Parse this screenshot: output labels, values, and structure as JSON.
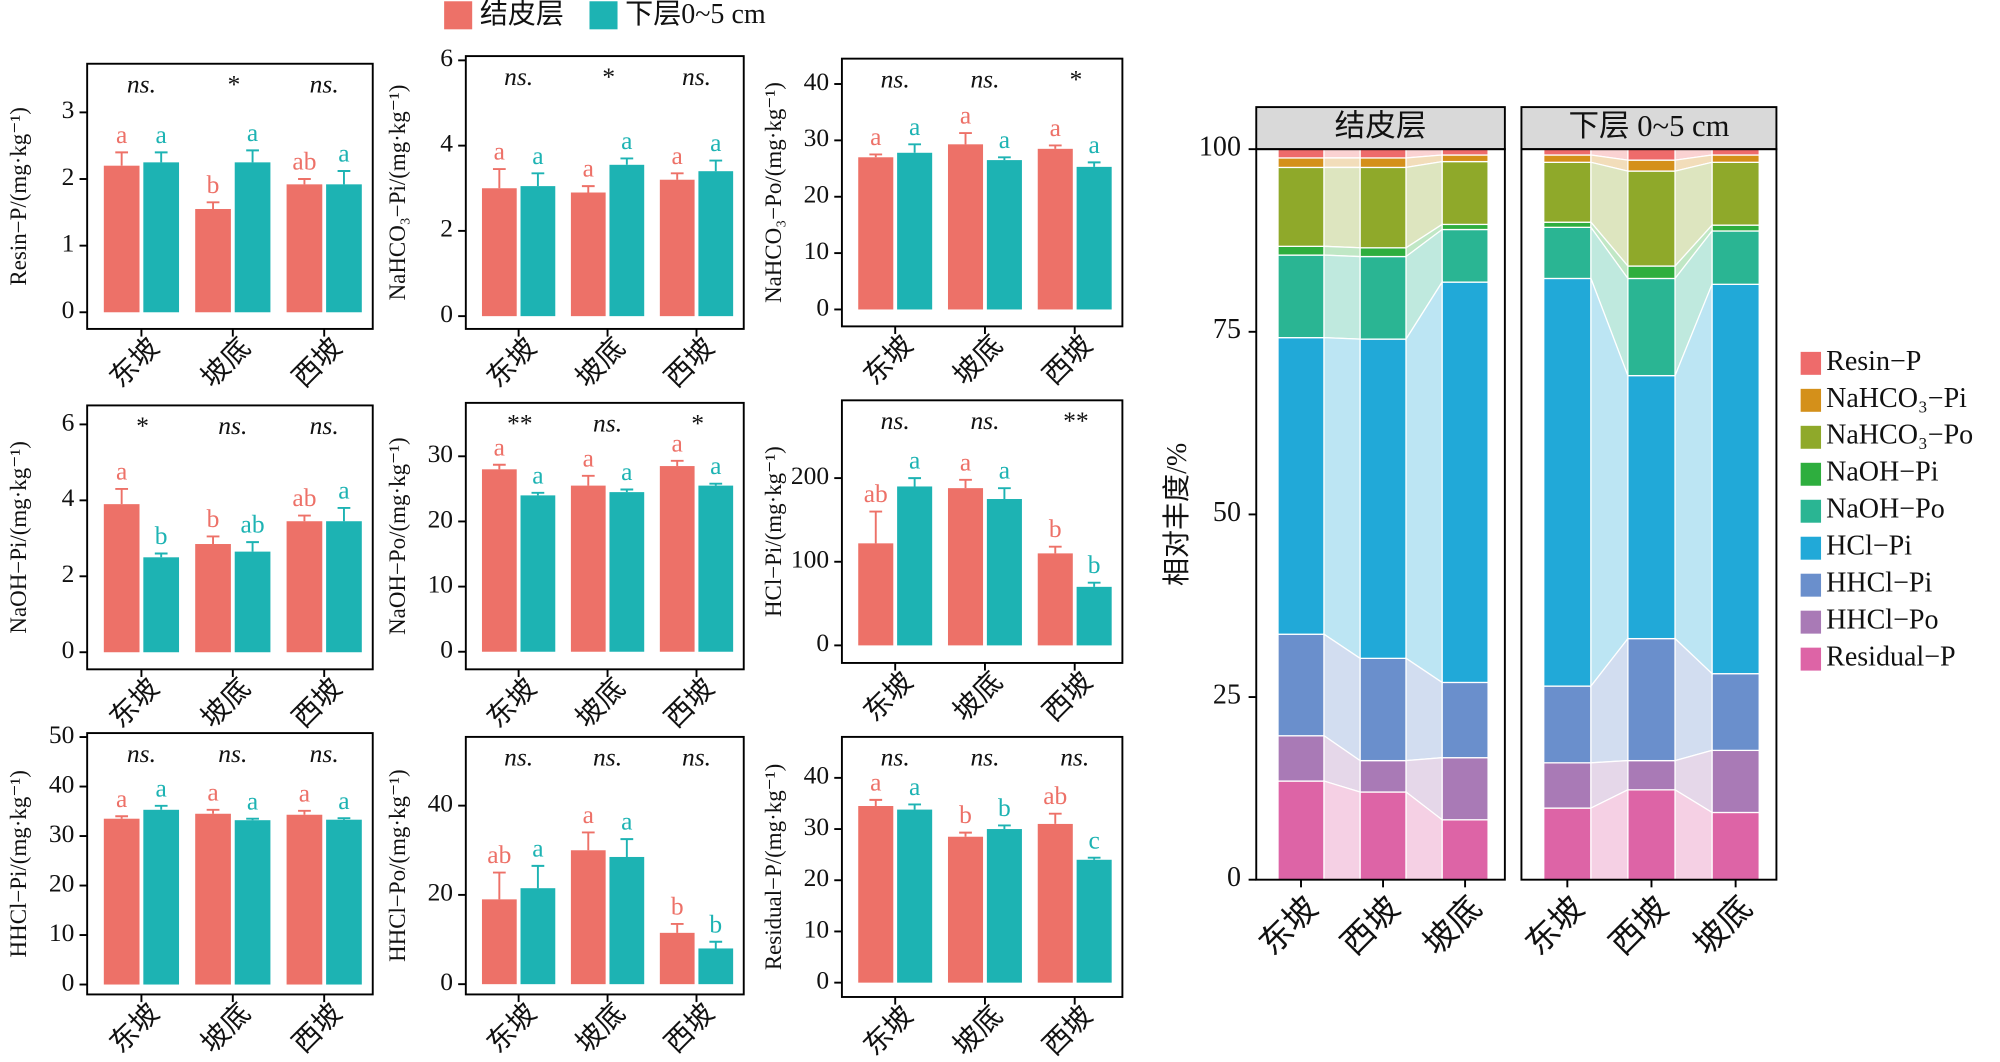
{
  "chart_data": [
    {
      "type": "bar",
      "ylabel": "Resin−P/(mg·kg⁻¹)",
      "categories": [
        "东坡",
        "坡底",
        "西坡"
      ],
      "ylim": [
        -0.25,
        3.73
      ],
      "yticks": [
        0,
        1,
        2,
        3
      ],
      "significance": [
        "ns.",
        "*",
        "ns."
      ],
      "series": [
        {
          "name": "结皮层",
          "color": "#ed7168",
          "values": [
            2.2,
            1.55,
            1.92
          ],
          "errors": [
            0.2,
            0.1,
            0.08
          ],
          "letters": [
            "a",
            "b",
            "ab"
          ]
        },
        {
          "name": "下层0~5 cm",
          "color": "#1db3b3",
          "values": [
            2.25,
            2.25,
            1.92
          ],
          "errors": [
            0.15,
            0.18,
            0.2
          ],
          "letters": [
            "a",
            "a",
            "a"
          ]
        }
      ]
    },
    {
      "type": "bar",
      "ylabel": "NaHCO₃−Pi/(mg·kg⁻¹)",
      "categories": [
        "东坡",
        "坡底",
        "西坡"
      ],
      "ylim": [
        -0.3,
        6.1
      ],
      "yticks": [
        0,
        2,
        4,
        6
      ],
      "significance": [
        "ns.",
        "*",
        "ns."
      ],
      "series": [
        {
          "color": "#ed7168",
          "values": [
            3.0,
            2.9,
            3.2
          ],
          "errors": [
            0.45,
            0.15,
            0.15
          ],
          "letters": [
            "a",
            "a",
            "a"
          ]
        },
        {
          "color": "#1db3b3",
          "values": [
            3.05,
            3.55,
            3.4
          ],
          "errors": [
            0.3,
            0.15,
            0.25
          ],
          "letters": [
            "a",
            "a",
            "a"
          ]
        }
      ]
    },
    {
      "type": "bar",
      "ylabel": "NaHCO₃−Po/(mg·kg⁻¹)",
      "categories": [
        "东坡",
        "坡底",
        "西坡"
      ],
      "ylim": [
        -3,
        44.5
      ],
      "yticks": [
        0,
        10,
        20,
        30,
        40
      ],
      "significance": [
        "ns.",
        "ns.",
        "*"
      ],
      "series": [
        {
          "color": "#ed7168",
          "values": [
            27,
            29.3,
            28.5
          ],
          "errors": [
            0.5,
            2,
            0.6
          ],
          "letters": [
            "a",
            "a",
            "a"
          ]
        },
        {
          "color": "#1db3b3",
          "values": [
            27.8,
            26.5,
            25.3
          ],
          "errors": [
            1.5,
            0.5,
            0.8
          ],
          "letters": [
            "a",
            "a",
            "a"
          ]
        }
      ]
    },
    {
      "type": "bar",
      "ylabel": "NaOH−Pi/(mg·kg⁻¹)",
      "categories": [
        "东坡",
        "坡底",
        "西坡"
      ],
      "ylim": [
        -0.45,
        6.5
      ],
      "yticks": [
        0,
        2,
        4,
        6
      ],
      "significance": [
        "*",
        "ns.",
        "ns."
      ],
      "series": [
        {
          "color": "#ed7168",
          "values": [
            3.9,
            2.85,
            3.45
          ],
          "errors": [
            0.4,
            0.2,
            0.15
          ],
          "letters": [
            "a",
            "b",
            "ab"
          ]
        },
        {
          "color": "#1db3b3",
          "values": [
            2.5,
            2.65,
            3.45
          ],
          "errors": [
            0.1,
            0.25,
            0.35
          ],
          "letters": [
            "b",
            "ab",
            "a"
          ]
        }
      ]
    },
    {
      "type": "bar",
      "ylabel": "NaOH−Po/(mg·kg⁻¹)",
      "categories": [
        "东坡",
        "坡底",
        "西坡"
      ],
      "ylim": [
        -2.7,
        38.2
      ],
      "yticks": [
        0,
        10,
        20,
        30
      ],
      "significance": [
        "**",
        "ns.",
        "*"
      ],
      "series": [
        {
          "color": "#ed7168",
          "values": [
            28,
            25.5,
            28.5
          ],
          "errors": [
            0.7,
            1.5,
            0.8
          ],
          "letters": [
            "a",
            "a",
            "a"
          ]
        },
        {
          "color": "#1db3b3",
          "values": [
            24,
            24.5,
            25.5
          ],
          "errors": [
            0.4,
            0.4,
            0.3
          ],
          "letters": [
            "a",
            "a",
            "a"
          ]
        }
      ]
    },
    {
      "type": "bar",
      "ylabel": "HCl−Pi/(mg·kg⁻¹)",
      "categories": [
        "东坡",
        "坡底",
        "西坡"
      ],
      "ylim": [
        -21,
        293
      ],
      "yticks": [
        0,
        100,
        200
      ],
      "significance": [
        "ns.",
        "ns.",
        "**"
      ],
      "series": [
        {
          "color": "#ed7168",
          "values": [
            122,
            188,
            110
          ],
          "errors": [
            38,
            10,
            8
          ],
          "letters": [
            "ab",
            "a",
            "b"
          ]
        },
        {
          "color": "#1db3b3",
          "values": [
            190,
            175,
            70
          ],
          "errors": [
            10,
            13,
            5
          ],
          "letters": [
            "a",
            "a",
            "b"
          ]
        }
      ]
    },
    {
      "type": "bar",
      "ylabel": "HHCl−Pi/(mg·kg⁻¹)",
      "categories": [
        "东坡",
        "坡底",
        "西坡"
      ],
      "ylim": [
        -2,
        50.8
      ],
      "yticks": [
        0,
        10,
        20,
        30,
        40,
        50
      ],
      "significance": [
        "ns.",
        "ns.",
        "ns."
      ],
      "series": [
        {
          "color": "#ed7168",
          "values": [
            33.5,
            34.5,
            34.3
          ],
          "errors": [
            0.5,
            0.8,
            0.8
          ],
          "letters": [
            "a",
            "a",
            "a"
          ]
        },
        {
          "color": "#1db3b3",
          "values": [
            35.3,
            33.2,
            33.3
          ],
          "errors": [
            0.8,
            0.3,
            0.3
          ],
          "letters": [
            "a",
            "a",
            "a"
          ]
        }
      ]
    },
    {
      "type": "bar",
      "ylabel": "HHCl−Po/(mg·kg⁻¹)",
      "categories": [
        "东坡",
        "坡底",
        "西坡"
      ],
      "ylim": [
        -2.3,
        55.4
      ],
      "yticks": [
        0,
        20,
        40
      ],
      "significance": [
        "ns.",
        "ns.",
        "ns."
      ],
      "series": [
        {
          "color": "#ed7168",
          "values": [
            19,
            30,
            11.5
          ],
          "errors": [
            6,
            4,
            2
          ],
          "letters": [
            "ab",
            "a",
            "b"
          ]
        },
        {
          "color": "#1db3b3",
          "values": [
            21.5,
            28.5,
            8
          ],
          "errors": [
            5,
            4,
            1.5
          ],
          "letters": [
            "a",
            "a",
            "b"
          ]
        }
      ]
    },
    {
      "type": "bar",
      "ylabel": "Residual−P/(mg·kg⁻¹)",
      "categories": [
        "东坡",
        "坡底",
        "西坡"
      ],
      "ylim": [
        -2.8,
        48
      ],
      "yticks": [
        0,
        10,
        20,
        30,
        40
      ],
      "significance": [
        "ns.",
        "ns.",
        "ns."
      ],
      "series": [
        {
          "color": "#ed7168",
          "values": [
            34.5,
            28.5,
            31
          ],
          "errors": [
            1.2,
            0.8,
            2
          ],
          "letters": [
            "a",
            "b",
            "ab"
          ]
        },
        {
          "color": "#1db3b3",
          "values": [
            33.8,
            30,
            24
          ],
          "errors": [
            1,
            0.7,
            0.4
          ],
          "letters": [
            "a",
            "b",
            "c"
          ]
        }
      ]
    },
    {
      "type": "stacked_bar",
      "title": "结皮层",
      "ylabel": "相对丰度/%",
      "categories": [
        "东坡",
        "西坡",
        "坡底"
      ],
      "ylim": [
        0,
        100
      ],
      "yticks": [
        0,
        25,
        50,
        75,
        100
      ],
      "series": [
        {
          "name": "Resin−P",
          "color": "#ee6b6b",
          "values": [
            1.2,
            1.2,
            0.8
          ]
        },
        {
          "name": "NaHCO₃−Pi",
          "color": "#d4901a",
          "values": [
            1.3,
            1.3,
            0.9
          ]
        },
        {
          "name": "NaHCO₃−Po",
          "color": "#8fa92a",
          "values": [
            10.8,
            11,
            8.6
          ]
        },
        {
          "name": "NaOH−Pi",
          "color": "#2eae3e",
          "values": [
            1.2,
            1.2,
            0.7
          ]
        },
        {
          "name": "NaOH−Po",
          "color": "#2ab593",
          "values": [
            11.3,
            11.3,
            7.2
          ]
        },
        {
          "name": "HCl−Pi",
          "color": "#21a9d8",
          "values": [
            40.6,
            43.7,
            54.8
          ]
        },
        {
          "name": "HHCl−Pi",
          "color": "#6a8fcc",
          "values": [
            13.9,
            14,
            10.3
          ]
        },
        {
          "name": "HHCl−Po",
          "color": "#a97ab6",
          "values": [
            6.2,
            4.3,
            8.5
          ]
        },
        {
          "name": "Residual−P",
          "color": "#dd64a6",
          "values": [
            13.5,
            12,
            8.2
          ]
        }
      ]
    },
    {
      "type": "stacked_bar",
      "title": "下层 0~5 cm",
      "categories": [
        "东坡",
        "西坡",
        "坡底"
      ],
      "ylim": [
        0,
        100
      ],
      "series": [
        {
          "color": "#ee6b6b",
          "values": [
            0.8,
            1.5,
            0.8
          ]
        },
        {
          "color": "#d4901a",
          "values": [
            1,
            1.5,
            1
          ]
        },
        {
          "color": "#8fa92a",
          "values": [
            8.2,
            13,
            8.6
          ]
        },
        {
          "color": "#2eae3e",
          "values": [
            0.7,
            1.7,
            0.8
          ]
        },
        {
          "color": "#2ab593",
          "values": [
            7,
            13.3,
            7.3
          ]
        },
        {
          "color": "#21a9d8",
          "values": [
            55.8,
            36,
            53.3
          ]
        },
        {
          "color": "#6a8fcc",
          "values": [
            10.5,
            16.7,
            10.5
          ]
        },
        {
          "color": "#a97ab6",
          "values": [
            6.2,
            4,
            8.5
          ]
        },
        {
          "color": "#dd64a6",
          "values": [
            9.8,
            12.3,
            9.2
          ]
        }
      ]
    }
  ]
}
